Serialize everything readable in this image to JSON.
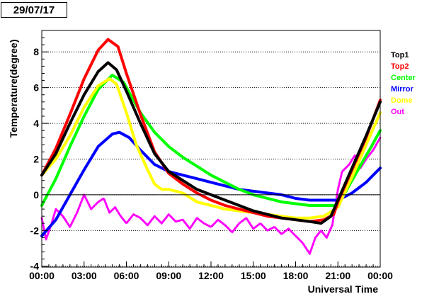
{
  "date_label": "29/07/17",
  "chart_data": {
    "type": "line",
    "xlabel": "Universal Time",
    "ylabel": "Temperature(degree)",
    "x_unit": "hours UT",
    "xlim": [
      0,
      24
    ],
    "ylim": [
      -4.05,
      9.2
    ],
    "x_ticks": [
      {
        "value": 0,
        "label": "00:00"
      },
      {
        "value": 3,
        "label": "03:00"
      },
      {
        "value": 6,
        "label": "06:00"
      },
      {
        "value": 9,
        "label": "09:00"
      },
      {
        "value": 12,
        "label": "12:00"
      },
      {
        "value": 15,
        "label": "15:00"
      },
      {
        "value": 18,
        "label": "18:00"
      },
      {
        "value": 21,
        "label": "21:00"
      },
      {
        "value": 24,
        "label": "00:00"
      }
    ],
    "y_ticks": [
      -4,
      -2,
      0,
      2,
      4,
      6,
      8
    ],
    "grid": "horizontal dotted",
    "legend_position": "right",
    "series": [
      {
        "name": "Top1",
        "color": "#000000",
        "points": [
          [
            0,
            1.1
          ],
          [
            1,
            2.3
          ],
          [
            2,
            4.0
          ],
          [
            3,
            5.6
          ],
          [
            4,
            6.9
          ],
          [
            4.7,
            7.4
          ],
          [
            5.3,
            7.0
          ],
          [
            6,
            5.8
          ],
          [
            7,
            4.0
          ],
          [
            8,
            2.3
          ],
          [
            9,
            1.3
          ],
          [
            10,
            0.8
          ],
          [
            11,
            0.3
          ],
          [
            12,
            0.0
          ],
          [
            13,
            -0.3
          ],
          [
            14,
            -0.6
          ],
          [
            15,
            -0.9
          ],
          [
            16,
            -1.1
          ],
          [
            17,
            -1.3
          ],
          [
            18,
            -1.4
          ],
          [
            19,
            -1.5
          ],
          [
            19.8,
            -1.6
          ],
          [
            20.5,
            -1.2
          ],
          [
            21,
            -0.3
          ],
          [
            22,
            1.5
          ],
          [
            23,
            3.3
          ],
          [
            24,
            5.2
          ]
        ]
      },
      {
        "name": "Top2",
        "color": "#ff0000",
        "points": [
          [
            0,
            1.1
          ],
          [
            1,
            2.6
          ],
          [
            2,
            4.5
          ],
          [
            3,
            6.5
          ],
          [
            4,
            8.1
          ],
          [
            4.7,
            8.7
          ],
          [
            5.4,
            8.3
          ],
          [
            6,
            6.8
          ],
          [
            7,
            4.5
          ],
          [
            8,
            2.4
          ],
          [
            9,
            1.2
          ],
          [
            10,
            0.6
          ],
          [
            11,
            0.1
          ],
          [
            12,
            -0.3
          ],
          [
            13,
            -0.6
          ],
          [
            14,
            -0.8
          ],
          [
            15,
            -1.0
          ],
          [
            16,
            -1.2
          ],
          [
            17,
            -1.3
          ],
          [
            18,
            -1.4
          ],
          [
            19,
            -1.5
          ],
          [
            20,
            -1.4
          ],
          [
            20.7,
            -1.1
          ],
          [
            21,
            -0.4
          ],
          [
            22,
            1.4
          ],
          [
            23,
            3.2
          ],
          [
            24,
            5.3
          ]
        ]
      },
      {
        "name": "Center",
        "color": "#00ff00",
        "points": [
          [
            0,
            -0.6
          ],
          [
            1,
            0.9
          ],
          [
            2,
            2.7
          ],
          [
            3,
            4.4
          ],
          [
            4,
            5.9
          ],
          [
            5,
            6.7
          ],
          [
            5.8,
            6.3
          ],
          [
            6.5,
            5.3
          ],
          [
            7,
            4.6
          ],
          [
            8,
            3.5
          ],
          [
            9,
            2.7
          ],
          [
            10,
            2.1
          ],
          [
            11,
            1.6
          ],
          [
            12,
            1.1
          ],
          [
            13,
            0.7
          ],
          [
            14,
            0.3
          ],
          [
            15,
            0.0
          ],
          [
            16,
            -0.2
          ],
          [
            17,
            -0.4
          ],
          [
            18,
            -0.5
          ],
          [
            19,
            -0.6
          ],
          [
            20,
            -0.6
          ],
          [
            20.8,
            -0.6
          ],
          [
            21.5,
            0.1
          ],
          [
            22.5,
            1.5
          ],
          [
            23.3,
            2.6
          ],
          [
            24,
            3.6
          ]
        ]
      },
      {
        "name": "Mirror",
        "color": "#0000ff",
        "points": [
          [
            0,
            -2.3
          ],
          [
            1,
            -1.4
          ],
          [
            2,
            0.0
          ],
          [
            3,
            1.4
          ],
          [
            4,
            2.7
          ],
          [
            5,
            3.4
          ],
          [
            5.5,
            3.5
          ],
          [
            6.2,
            3.2
          ],
          [
            7,
            2.5
          ],
          [
            8,
            1.7
          ],
          [
            9,
            1.3
          ],
          [
            10,
            1.1
          ],
          [
            11,
            0.9
          ],
          [
            12,
            0.7
          ],
          [
            13,
            0.5
          ],
          [
            14,
            0.3
          ],
          [
            15,
            0.2
          ],
          [
            16,
            0.1
          ],
          [
            17,
            0.0
          ],
          [
            18,
            -0.2
          ],
          [
            19,
            -0.3
          ],
          [
            20,
            -0.3
          ],
          [
            21,
            -0.3
          ],
          [
            22,
            0.1
          ],
          [
            23,
            0.7
          ],
          [
            24,
            1.5
          ]
        ]
      },
      {
        "name": "Dome",
        "color": "#ffff00",
        "points": [
          [
            0,
            1.1
          ],
          [
            1,
            2.0
          ],
          [
            2,
            3.3
          ],
          [
            3,
            4.9
          ],
          [
            4,
            6.1
          ],
          [
            4.8,
            6.5
          ],
          [
            5.3,
            6.2
          ],
          [
            6,
            4.6
          ],
          [
            6.7,
            2.8
          ],
          [
            7.5,
            1.4
          ],
          [
            8,
            0.6
          ],
          [
            8.5,
            0.3
          ],
          [
            9,
            0.3
          ],
          [
            10,
            0.1
          ],
          [
            11,
            -0.4
          ],
          [
            12,
            -0.6
          ],
          [
            13,
            -0.8
          ],
          [
            14,
            -0.9
          ],
          [
            15,
            -1.0
          ],
          [
            16,
            -1.1
          ],
          [
            17,
            -1.2
          ],
          [
            18,
            -1.3
          ],
          [
            19,
            -1.3
          ],
          [
            20,
            -1.2
          ],
          [
            21,
            -0.7
          ],
          [
            22,
            1.0
          ],
          [
            23,
            2.8
          ],
          [
            24,
            4.6
          ]
        ]
      },
      {
        "name": "Out",
        "color": "#ff00ff",
        "points": [
          [
            0,
            -1.3
          ],
          [
            0.3,
            -2.5
          ],
          [
            0.7,
            -1.6
          ],
          [
            1,
            -0.8
          ],
          [
            1.5,
            -1.2
          ],
          [
            2,
            -1.8
          ],
          [
            2.5,
            -1.0
          ],
          [
            3,
            0.0
          ],
          [
            3.5,
            -0.8
          ],
          [
            4,
            -0.4
          ],
          [
            4.4,
            -0.2
          ],
          [
            4.8,
            -1.0
          ],
          [
            5.2,
            -0.7
          ],
          [
            5.6,
            -1.2
          ],
          [
            6,
            -1.6
          ],
          [
            6.5,
            -1.1
          ],
          [
            7,
            -1.3
          ],
          [
            7.5,
            -1.7
          ],
          [
            8,
            -1.2
          ],
          [
            8.5,
            -1.6
          ],
          [
            9,
            -1.1
          ],
          [
            9.5,
            -1.5
          ],
          [
            10,
            -1.4
          ],
          [
            10.5,
            -1.9
          ],
          [
            11,
            -1.3
          ],
          [
            11.5,
            -1.6
          ],
          [
            12,
            -1.8
          ],
          [
            12.5,
            -1.4
          ],
          [
            13,
            -1.7
          ],
          [
            13.5,
            -2.1
          ],
          [
            14,
            -1.6
          ],
          [
            14.5,
            -1.3
          ],
          [
            15,
            -1.9
          ],
          [
            15.5,
            -1.6
          ],
          [
            16,
            -2.0
          ],
          [
            16.5,
            -1.8
          ],
          [
            17,
            -2.2
          ],
          [
            17.5,
            -1.9
          ],
          [
            18,
            -2.3
          ],
          [
            18.5,
            -2.7
          ],
          [
            19,
            -3.3
          ],
          [
            19.4,
            -2.4
          ],
          [
            19.8,
            -2.0
          ],
          [
            20.2,
            -2.4
          ],
          [
            20.6,
            -1.7
          ],
          [
            21,
            0.3
          ],
          [
            21.3,
            1.3
          ],
          [
            21.8,
            1.7
          ],
          [
            22.2,
            2.2
          ],
          [
            22.6,
            1.5
          ],
          [
            23,
            2.0
          ],
          [
            23.5,
            2.5
          ],
          [
            24,
            3.2
          ]
        ]
      }
    ]
  }
}
